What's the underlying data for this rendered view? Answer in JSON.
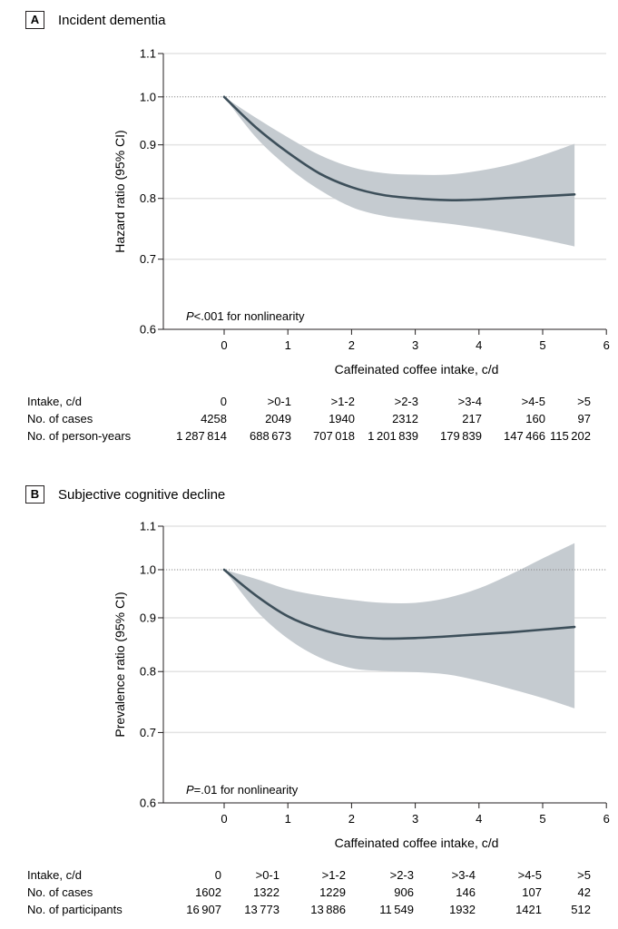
{
  "chart_data": [
    {
      "type": "line",
      "panel_letter": "A",
      "title": "Incident dementia",
      "xlabel": "Caffeinated coffee intake, c/d",
      "ylabel": "Hazard ratio (95% CI)",
      "y_scale": "log",
      "xlim": [
        -0.95,
        6
      ],
      "ylim": [
        0.6,
        1.1
      ],
      "x_ticks": [
        0,
        1,
        2,
        3,
        4,
        5,
        6
      ],
      "x_tick_labels": [
        "0",
        "1",
        "2",
        "3",
        "4",
        "5",
        "6"
      ],
      "y_ticks": [
        0.6,
        0.7,
        0.8,
        0.9,
        1.0,
        1.1
      ],
      "y_tick_labels": [
        "0.6",
        "0.7",
        "0.8",
        "0.9",
        "1.0",
        "1.1"
      ],
      "reference_line": 1.0,
      "grid": "horizontal",
      "annotation": {
        "italic": "P",
        "text": "<.001 for nonlinearity"
      },
      "series": [
        {
          "name": "Hazard ratio",
          "x": [
            0,
            0.5,
            1,
            1.5,
            2,
            2.5,
            3,
            3.5,
            4,
            4.5,
            5,
            5.5
          ],
          "y": [
            1.0,
            0.935,
            0.885,
            0.845,
            0.82,
            0.806,
            0.8,
            0.797,
            0.798,
            0.801,
            0.804,
            0.807
          ],
          "lower": [
            1.0,
            0.915,
            0.857,
            0.815,
            0.785,
            0.77,
            0.763,
            0.757,
            0.75,
            0.741,
            0.731,
            0.72
          ],
          "upper": [
            1.0,
            0.955,
            0.915,
            0.88,
            0.857,
            0.846,
            0.843,
            0.843,
            0.85,
            0.862,
            0.88,
            0.902
          ]
        }
      ],
      "table": {
        "rows": [
          {
            "label": "Intake, c/d",
            "values": [
              "0",
              ">0-1",
              ">1-2",
              ">2-3",
              ">3-4",
              ">4-5",
              ">5"
            ]
          },
          {
            "label": "No. of cases",
            "values": [
              "4258",
              "2049",
              "1940",
              "2312",
              "217",
              "160",
              "97"
            ]
          },
          {
            "label": "No. of person-years",
            "values": [
              "1287814",
              "688673",
              "707018",
              "1201839",
              "179839",
              "147466",
              "115202"
            ]
          }
        ]
      }
    },
    {
      "type": "line",
      "panel_letter": "B",
      "title": "Subjective cognitive decline",
      "xlabel": "Caffeinated coffee intake, c/d",
      "ylabel": "Prevalence ratio (95% CI)",
      "y_scale": "log",
      "xlim": [
        -0.95,
        6
      ],
      "ylim": [
        0.6,
        1.1
      ],
      "x_ticks": [
        0,
        1,
        2,
        3,
        4,
        5,
        6
      ],
      "x_tick_labels": [
        "0",
        "1",
        "2",
        "3",
        "4",
        "5",
        "6"
      ],
      "y_ticks": [
        0.6,
        0.7,
        0.8,
        0.9,
        1.0,
        1.1
      ],
      "y_tick_labels": [
        "0.6",
        "0.7",
        "0.8",
        "0.9",
        "1.0",
        "1.1"
      ],
      "reference_line": 1.0,
      "grid": "horizontal",
      "annotation": {
        "italic": "P",
        "text": "=.01 for nonlinearity"
      },
      "series": [
        {
          "name": "Prevalence ratio",
          "x": [
            0,
            0.5,
            1,
            1.5,
            2,
            2.5,
            3,
            3.5,
            4,
            4.5,
            5,
            5.5
          ],
          "y": [
            1.0,
            0.945,
            0.903,
            0.878,
            0.864,
            0.86,
            0.861,
            0.864,
            0.868,
            0.872,
            0.877,
            0.882
          ],
          "lower": [
            1.0,
            0.915,
            0.86,
            0.825,
            0.806,
            0.801,
            0.799,
            0.795,
            0.784,
            0.77,
            0.755,
            0.738
          ],
          "upper": [
            1.0,
            0.98,
            0.958,
            0.945,
            0.936,
            0.93,
            0.93,
            0.94,
            0.96,
            0.99,
            1.025,
            1.06
          ]
        }
      ],
      "table": {
        "rows": [
          {
            "label": "Intake, c/d",
            "values": [
              "0",
              ">0-1",
              ">1-2",
              ">2-3",
              ">3-4",
              ">4-5",
              ">5"
            ]
          },
          {
            "label": "No. of cases",
            "values": [
              "1602",
              "1322",
              "1229",
              "906",
              "146",
              "107",
              "42"
            ]
          },
          {
            "label": "No. of participants",
            "values": [
              "16907",
              "13773",
              "13886",
              "11549",
              "1932",
              "1421",
              "512"
            ]
          }
        ]
      }
    }
  ],
  "colors": {
    "line": "#3d4f5a",
    "band": "#c5cbd0",
    "grid": "#e3e3e3",
    "axis": "#231f20",
    "reference": "#8a8a8a"
  }
}
